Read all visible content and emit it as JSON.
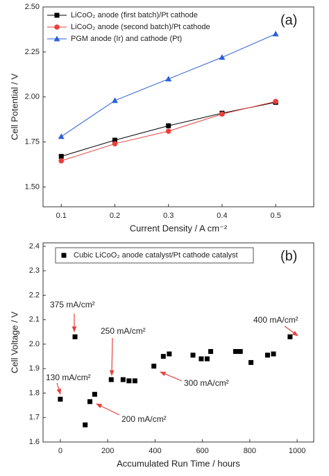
{
  "chart_data": [
    {
      "type": "line",
      "panel_label": "(a)",
      "x_label": "Current Density / A cm⁻²",
      "y_label": "Cell Potential / V",
      "x": [
        0.1,
        0.2,
        0.3,
        0.4,
        0.5
      ],
      "series": [
        {
          "name": "LiCoO₂ anode (first batch)/Pt cathode",
          "color": "#000000",
          "marker": "square",
          "values": [
            1.67,
            1.76,
            1.84,
            1.91,
            1.97
          ]
        },
        {
          "name": "LiCoO₂ anode (second batch)/Pt cathode",
          "color": "#e8403a",
          "marker": "circle",
          "values": [
            1.645,
            1.74,
            1.81,
            1.905,
            1.975
          ]
        },
        {
          "name": "PGM anode (Ir) and cathode (Pt)",
          "color": "#2b5fd9",
          "marker": "triangle",
          "values": [
            1.78,
            1.98,
            2.1,
            2.22,
            2.35
          ]
        }
      ],
      "xlim": [
        0.066,
        0.571
      ],
      "xticks": [
        0.1,
        0.2,
        0.3,
        0.4,
        0.5
      ],
      "ylim": [
        1.39,
        2.5
      ],
      "yticks": [
        {
          "value": 1.5,
          "label": "1.50"
        },
        1.75,
        {
          "value": 2,
          "label": "2.00"
        },
        2.25,
        {
          "value": 2.5,
          "label": "2.50"
        }
      ],
      "legend": "upper left"
    },
    {
      "type": "scatter",
      "panel_label": "(b)",
      "x_label": "Accumulated Run Time / hours",
      "y_label": "Cell Voltage / V",
      "series": [
        {
          "name": "Cubic LiCoO₂ anode catalyst/Pt cathode catalyst",
          "color": "#000000",
          "marker": "square",
          "x": [
            0,
            62,
            105,
            125,
            145,
            215,
            265,
            290,
            315,
            395,
            435,
            460,
            560,
            595,
            620,
            635,
            740,
            760,
            805,
            875,
            900,
            970
          ],
          "values": [
            1.775,
            2.03,
            1.67,
            1.765,
            1.795,
            1.855,
            1.855,
            1.85,
            1.85,
            1.91,
            1.95,
            1.96,
            1.955,
            1.94,
            1.94,
            1.97,
            1.97,
            1.97,
            1.925,
            1.955,
            1.96,
            2.03
          ]
        }
      ],
      "annotations": [
        "375 mA/cm²",
        "130 mA/cm²",
        "250 mA/cm²",
        "300 mA/cm²",
        "200 mA/cm²",
        "400 mA/cm²"
      ],
      "xlim": [
        -73,
        1070
      ],
      "xticks": [
        0,
        200,
        400,
        600,
        800,
        1000
      ],
      "ylim": [
        1.6,
        2.414
      ],
      "yticks": [
        1.6,
        1.7,
        1.8,
        1.9,
        {
          "value": 2,
          "label": "2.0"
        },
        2.1,
        2.2,
        2.3,
        2.4
      ],
      "legend": "upper left"
    }
  ]
}
